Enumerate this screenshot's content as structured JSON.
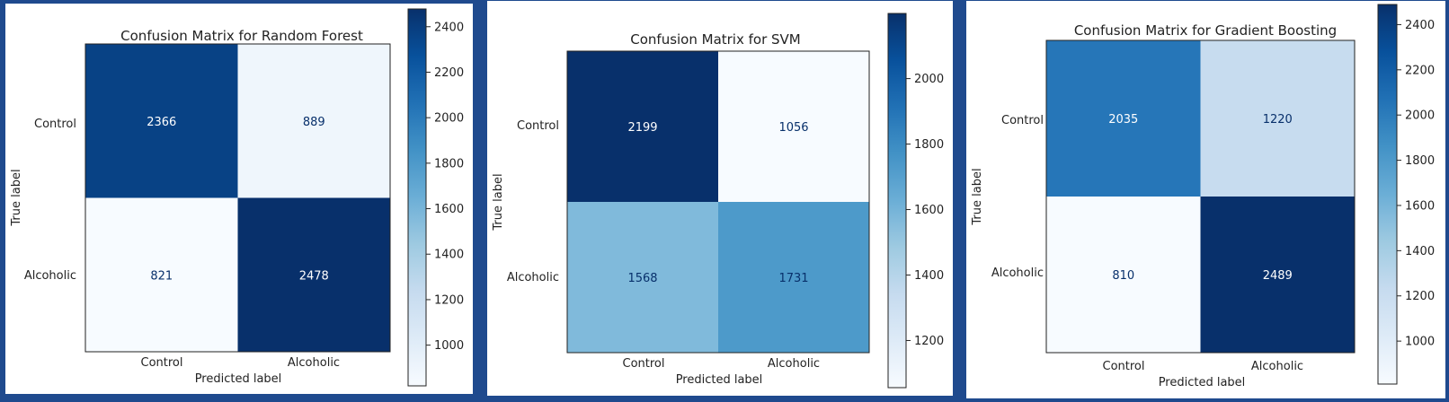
{
  "chart_data": [
    {
      "type": "heatmap",
      "title": "Confusion Matrix for Random Forest",
      "xlabel": "Predicted label",
      "ylabel": "True label",
      "x_categories": [
        "Control",
        "Alcoholic"
      ],
      "y_categories": [
        "Control",
        "Alcoholic"
      ],
      "values": [
        [
          2366,
          889
        ],
        [
          821,
          2478
        ]
      ],
      "colormap": "Blues",
      "color_range": [
        821,
        2478
      ],
      "colorbar_ticks": [
        1000,
        1200,
        1400,
        1600,
        1800,
        2000,
        2200,
        2400
      ]
    },
    {
      "type": "heatmap",
      "title": "Confusion Matrix for SVM",
      "xlabel": "Predicted label",
      "ylabel": "True label",
      "x_categories": [
        "Control",
        "Alcoholic"
      ],
      "y_categories": [
        "Control",
        "Alcoholic"
      ],
      "values": [
        [
          2199,
          1056
        ],
        [
          1568,
          1731
        ]
      ],
      "colormap": "Blues",
      "color_range": [
        1056,
        2199
      ],
      "colorbar_ticks": [
        1200,
        1400,
        1600,
        1800,
        2000
      ]
    },
    {
      "type": "heatmap",
      "title": "Confusion Matrix for Gradient Boosting",
      "xlabel": "Predicted label",
      "ylabel": "True label",
      "x_categories": [
        "Control",
        "Alcoholic"
      ],
      "y_categories": [
        "Control",
        "Alcoholic"
      ],
      "values": [
        [
          2035,
          1220
        ],
        [
          810,
          2489
        ]
      ],
      "colormap": "Blues",
      "color_range": [
        810,
        2489
      ],
      "colorbar_ticks": [
        1000,
        1200,
        1400,
        1600,
        1800,
        2000,
        2200,
        2400
      ]
    }
  ]
}
